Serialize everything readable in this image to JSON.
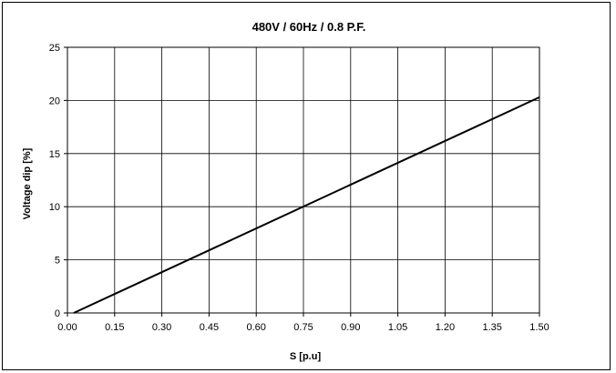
{
  "chart_data": {
    "type": "line",
    "title": "480V / 60Hz / 0.8 P.F.",
    "xlabel": "S [p.u]",
    "ylabel": "Voltage dip [%]",
    "xlim": [
      0.0,
      1.5
    ],
    "ylim": [
      0,
      25
    ],
    "x_ticks": [
      "0.00",
      "0.15",
      "0.30",
      "0.45",
      "0.60",
      "0.75",
      "0.90",
      "1.05",
      "1.20",
      "1.35",
      "1.50"
    ],
    "y_ticks": [
      "0",
      "5",
      "10",
      "15",
      "20",
      "25"
    ],
    "grid": true,
    "legend": "none",
    "series": [
      {
        "x": [
          0.02,
          1.5
        ],
        "y": [
          0,
          20.3
        ],
        "color": "#000000"
      }
    ]
  }
}
